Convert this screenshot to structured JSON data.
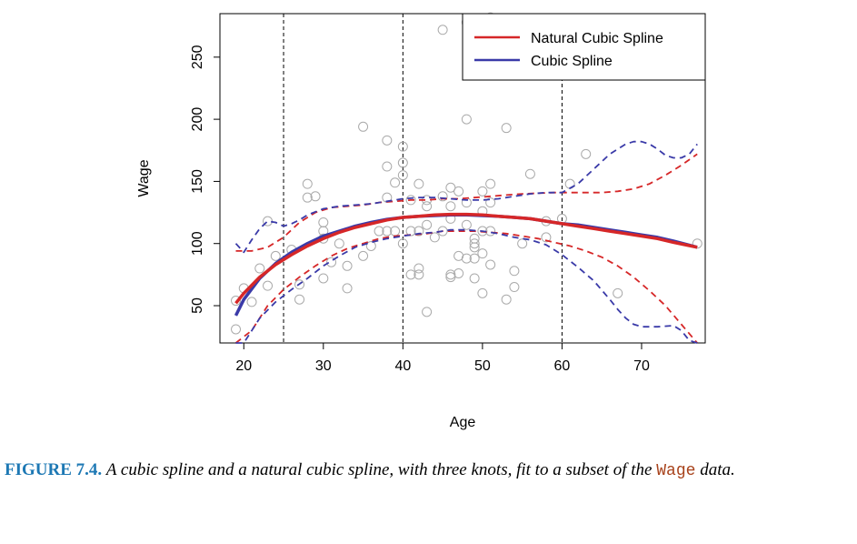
{
  "chart_data": {
    "type": "line",
    "xlabel": "Age",
    "ylabel": "Wage",
    "xlim": [
      17,
      78
    ],
    "ylim": [
      20,
      285
    ],
    "xticks": [
      20,
      30,
      40,
      50,
      60,
      70
    ],
    "yticks": [
      50,
      100,
      150,
      200,
      250
    ],
    "knots": [
      25,
      40,
      60
    ],
    "legend_position": "top-right",
    "colors": {
      "natural": "#d62728",
      "cubic": "#3a3aa8",
      "points": "#aaaaaa"
    },
    "legend": [
      {
        "label": "Natural Cubic Spline",
        "color": "#d62728"
      },
      {
        "label": "Cubic Spline",
        "color": "#3a3aa8"
      }
    ],
    "points": [
      [
        19,
        31
      ],
      [
        19,
        54
      ],
      [
        20,
        64
      ],
      [
        21,
        53
      ],
      [
        22,
        80
      ],
      [
        23,
        66
      ],
      [
        23,
        118
      ],
      [
        24,
        90
      ],
      [
        26,
        95
      ],
      [
        27,
        67
      ],
      [
        27,
        55
      ],
      [
        28,
        137
      ],
      [
        28,
        148
      ],
      [
        29,
        138
      ],
      [
        30,
        117
      ],
      [
        30,
        110
      ],
      [
        30,
        104
      ],
      [
        30,
        72
      ],
      [
        31,
        85
      ],
      [
        32,
        100
      ],
      [
        33,
        64
      ],
      [
        33,
        82
      ],
      [
        35,
        194
      ],
      [
        35,
        90
      ],
      [
        36,
        98
      ],
      [
        37,
        110
      ],
      [
        38,
        183
      ],
      [
        38,
        162
      ],
      [
        38,
        110
      ],
      [
        38,
        137
      ],
      [
        39,
        149
      ],
      [
        39,
        110
      ],
      [
        40,
        178
      ],
      [
        40,
        165
      ],
      [
        40,
        155
      ],
      [
        40,
        100
      ],
      [
        41,
        75
      ],
      [
        41,
        110
      ],
      [
        41,
        135
      ],
      [
        42,
        148
      ],
      [
        42,
        80
      ],
      [
        42,
        75
      ],
      [
        42,
        110
      ],
      [
        43,
        135
      ],
      [
        43,
        115
      ],
      [
        43,
        130
      ],
      [
        43,
        45
      ],
      [
        44,
        105
      ],
      [
        45,
        272
      ],
      [
        45,
        138
      ],
      [
        45,
        110
      ],
      [
        46,
        145
      ],
      [
        46,
        130
      ],
      [
        46,
        120
      ],
      [
        46,
        75
      ],
      [
        46,
        73
      ],
      [
        47,
        142
      ],
      [
        47,
        90
      ],
      [
        47,
        76
      ],
      [
        48,
        278
      ],
      [
        48,
        200
      ],
      [
        48,
        133
      ],
      [
        48,
        115
      ],
      [
        48,
        88
      ],
      [
        49,
        100
      ],
      [
        49,
        97
      ],
      [
        49,
        104
      ],
      [
        49,
        88
      ],
      [
        49,
        72
      ],
      [
        50,
        142
      ],
      [
        50,
        126
      ],
      [
        50,
        110
      ],
      [
        50,
        92
      ],
      [
        50,
        60
      ],
      [
        51,
        282
      ],
      [
        51,
        148
      ],
      [
        51,
        133
      ],
      [
        51,
        110
      ],
      [
        51,
        83
      ],
      [
        53,
        193
      ],
      [
        53,
        55
      ],
      [
        54,
        65
      ],
      [
        54,
        78
      ],
      [
        55,
        100
      ],
      [
        56,
        156
      ],
      [
        58,
        118
      ],
      [
        58,
        105
      ],
      [
        60,
        120
      ],
      [
        61,
        148
      ],
      [
        63,
        172
      ],
      [
        67,
        60
      ],
      [
        77,
        100
      ]
    ],
    "series": [
      {
        "name": "Natural Cubic Spline",
        "style": "solid",
        "x": [
          19,
          20,
          22,
          24,
          26,
          28,
          30,
          32,
          34,
          36,
          38,
          40,
          42,
          44,
          46,
          48,
          50,
          52,
          54,
          56,
          58,
          60,
          62,
          64,
          66,
          68,
          70,
          72,
          74,
          77
        ],
        "y": [
          52,
          60,
          73,
          83,
          91,
          98,
          104,
          109,
          113,
          116,
          119,
          121,
          122,
          123,
          123.5,
          123.5,
          123,
          122,
          121,
          120,
          118,
          116,
          114,
          112,
          110,
          108,
          106,
          104,
          101,
          97
        ]
      },
      {
        "name": "Natural Cubic Spline upper band",
        "style": "dashed",
        "x": [
          19,
          21,
          23,
          25,
          27,
          29,
          31,
          33,
          35,
          37,
          39,
          41,
          43,
          45,
          47,
          49,
          51,
          53,
          55,
          57,
          59,
          61,
          63,
          65,
          67,
          69,
          71,
          73,
          75,
          77
        ],
        "y": [
          94,
          94,
          97,
          105,
          117,
          125,
          129,
          130,
          131,
          133,
          134,
          135,
          135,
          136,
          136,
          137,
          138,
          139,
          140,
          140.5,
          141,
          141,
          141,
          141,
          142,
          144,
          148,
          155,
          163,
          172
        ]
      },
      {
        "name": "Natural Cubic Spline lower band",
        "style": "dashed",
        "x": [
          19,
          21,
          23,
          25,
          27,
          29,
          31,
          33,
          35,
          37,
          39,
          41,
          43,
          45,
          47,
          49,
          51,
          53,
          55,
          57,
          59,
          61,
          63,
          65,
          67,
          69,
          71,
          73,
          75,
          77
        ],
        "y": [
          15,
          30,
          50,
          63,
          73,
          82,
          90,
          96,
          100,
          104,
          106,
          107,
          108,
          110,
          110,
          110,
          109,
          108,
          106,
          104,
          101,
          98,
          94,
          89,
          82,
          73,
          62,
          50,
          35,
          18
        ]
      },
      {
        "name": "Cubic Spline",
        "style": "solid",
        "x": [
          19,
          20,
          22,
          24,
          26,
          28,
          30,
          32,
          34,
          36,
          38,
          40,
          42,
          44,
          46,
          48,
          50,
          52,
          54,
          56,
          58,
          60,
          62,
          64,
          66,
          68,
          70,
          72,
          74,
          77
        ],
        "y": [
          42,
          55,
          72,
          84,
          93,
          100,
          106,
          110,
          114,
          117,
          119.5,
          121,
          122,
          122.5,
          123,
          123,
          122.5,
          122,
          121,
          120,
          118,
          116,
          115,
          113,
          111,
          109,
          107,
          105,
          102,
          97
        ]
      },
      {
        "name": "Cubic Spline upper band",
        "style": "dashed",
        "x": [
          19,
          20,
          21,
          22,
          23,
          24,
          25,
          26,
          27,
          28,
          30,
          32,
          34,
          36,
          38,
          40,
          42,
          44,
          46,
          48,
          50,
          52,
          54,
          56,
          58,
          60,
          62,
          64,
          66,
          68,
          69,
          70,
          71,
          72,
          73,
          74,
          75,
          76,
          77
        ],
        "y": [
          100,
          93,
          103,
          112,
          118,
          117,
          114,
          116,
          119,
          123,
          128,
          130,
          131,
          132,
          134,
          136,
          137,
          137,
          136,
          135,
          135,
          136,
          138,
          140,
          141,
          141,
          148,
          160,
          172,
          180,
          182,
          182,
          180,
          176,
          171,
          169,
          169,
          172,
          180
        ]
      },
      {
        "name": "Cubic Spline lower band",
        "style": "dashed",
        "x": [
          19,
          20,
          22,
          24,
          26,
          28,
          30,
          32,
          34,
          36,
          38,
          40,
          42,
          44,
          46,
          48,
          50,
          52,
          54,
          56,
          58,
          60,
          62,
          64,
          66,
          67,
          68,
          69,
          70,
          72,
          74,
          75,
          76,
          77
        ],
        "y": [
          10,
          20,
          40,
          53,
          63,
          72,
          82,
          90,
          97,
          101,
          104,
          106,
          108,
          109,
          111,
          111,
          110,
          108,
          105,
          103,
          99,
          91,
          81,
          70,
          55,
          47,
          40,
          35,
          33,
          33,
          34,
          30,
          22,
          15
        ]
      }
    ]
  },
  "caption": {
    "label": "FIGURE 7.4.",
    "text": "A cubic spline and a natural cubic spline, with three knots, fit to a subset of the",
    "code": "Wage",
    "tail": "data."
  }
}
